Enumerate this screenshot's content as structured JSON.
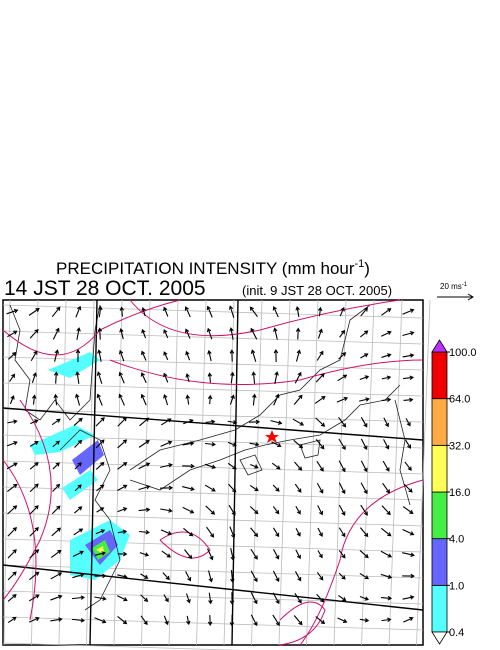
{
  "title": {
    "main": "PRECIPITATION INTENSITY (mm hour",
    "sup": "-1",
    "close": ")"
  },
  "time": "14 JST 28 OCT. 2005",
  "init": "(init. 9 JST 28 OCT. 2005)",
  "vector_scale": {
    "label": "20 ms",
    "sup": "-1"
  },
  "colorbar": {
    "levels": [
      {
        "value": 0.4,
        "label": "0.4"
      },
      {
        "value": 1,
        "label": "1.0"
      },
      {
        "value": 4,
        "label": "4.0"
      },
      {
        "value": 16,
        "label": "16.0"
      },
      {
        "value": 32,
        "label": "32.0"
      },
      {
        "value": 64,
        "label": "64.0"
      },
      {
        "value": 100,
        "label": "100.0"
      }
    ],
    "colors": [
      "#55ffff",
      "#6666ff",
      "#44ee44",
      "#ffff55",
      "#ffaa44",
      "#ee0000"
    ],
    "under_color": "#ffffff",
    "over_color": "#bb33ff"
  }
}
